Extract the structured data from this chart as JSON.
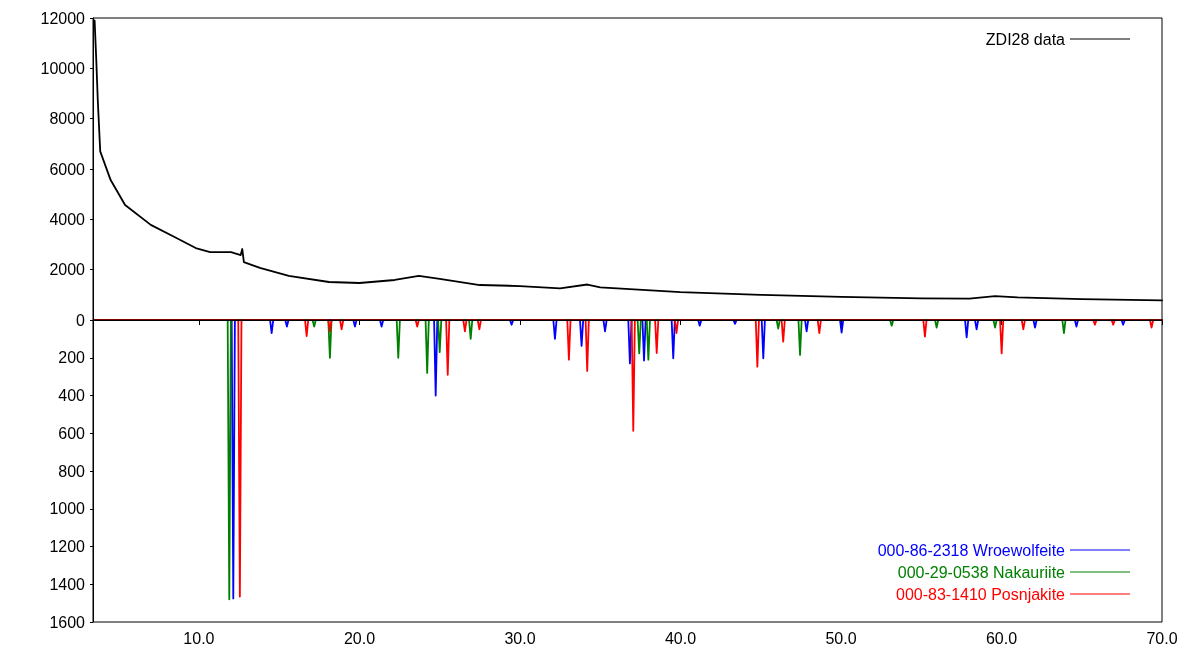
{
  "chart_data": [
    {
      "type": "line",
      "xlim": [
        3.4,
        70
      ],
      "ylim": [
        0,
        12000
      ],
      "yticks": [
        0,
        2000,
        4000,
        6000,
        8000,
        10000,
        12000
      ],
      "tick_labels": "y",
      "grid": false,
      "legend": "top right",
      "marker": "none",
      "line_style": "solid",
      "x": [
        3.5,
        3.6,
        3.7,
        3.85,
        4.5,
        5.4,
        7.0,
        8.6,
        9.8,
        10.7,
        12.0,
        12.6,
        12.7,
        12.8,
        13.8,
        15.6,
        18.1,
        20,
        22.2,
        23.7,
        25,
        27.5,
        30,
        32.5,
        34.2,
        35,
        40,
        45,
        50,
        55,
        58,
        59.6,
        61,
        65,
        70
      ],
      "series": [
        {
          "name": "ZDI28 data",
          "color": "#000000",
          "values": [
            11900,
            10400,
            8700,
            6700,
            5560,
            4570,
            3780,
            3260,
            2860,
            2700,
            2700,
            2580,
            2820,
            2300,
            2070,
            1750,
            1510,
            1470,
            1590,
            1750,
            1630,
            1390,
            1350,
            1260,
            1410,
            1300,
            1110,
            1000,
            920,
            860,
            850,
            950,
            900,
            830,
            780
          ]
        }
      ]
    },
    {
      "type": "line",
      "xlim": [
        3.4,
        70
      ],
      "xticks": [
        {
          "value": 10,
          "label": "10.0"
        },
        {
          "value": 20,
          "label": "20.0"
        },
        {
          "value": 30,
          "label": "30.0"
        },
        {
          "value": 40,
          "label": "40.0"
        },
        {
          "value": 50,
          "label": "50.0"
        },
        {
          "value": 60,
          "label": "60.0"
        },
        {
          "value": 70,
          "label": "70.0"
        }
      ],
      "ylim": [
        1600,
        0
      ],
      "yticks": [
        200,
        400,
        600,
        800,
        1000,
        1200,
        1400,
        1600
      ],
      "grid": false,
      "legend": "bottom right",
      "marker": "none",
      "line_style": "solid",
      "series": [
        {
          "name": "000-86-2318 Wroewolfeite",
          "color": "#0000ff",
          "x": [
            3.5,
            12.04,
            12.14,
            12.24,
            14.43,
            14.53,
            14.63,
            15.38,
            15.48,
            15.58,
            19.62,
            19.72,
            19.82,
            21.28,
            21.38,
            21.48,
            24.65,
            24.75,
            24.85,
            29.38,
            29.48,
            29.58,
            32.08,
            32.18,
            32.28,
            33.74,
            33.84,
            33.94,
            35.2,
            35.3,
            35.4,
            36.75,
            36.85,
            36.95,
            37.63,
            37.73,
            37.83,
            39.45,
            39.55,
            39.65,
            41.1,
            41.2,
            41.3,
            43.3,
            43.4,
            43.5,
            45.06,
            45.16,
            45.26,
            47.76,
            47.86,
            47.96,
            49.94,
            50.04,
            50.14,
            57.73,
            57.83,
            57.93,
            58.35,
            58.45,
            58.55,
            61.99,
            62.09,
            62.19,
            64.57,
            64.67,
            64.77,
            67.48,
            67.58,
            67.68,
            70
          ],
          "values": [
            0,
            0,
            1475,
            0,
            0,
            70,
            0,
            0,
            35,
            0,
            0,
            35,
            0,
            0,
            35,
            0,
            0,
            400,
            0,
            0,
            25,
            0,
            0,
            100,
            0,
            0,
            137,
            0,
            0,
            60,
            0,
            0,
            230,
            0,
            0,
            215,
            0,
            0,
            203,
            0,
            0,
            30,
            0,
            0,
            20,
            0,
            0,
            203,
            0,
            0,
            60,
            0,
            0,
            67,
            0,
            0,
            92,
            0,
            0,
            50,
            0,
            0,
            40,
            0,
            0,
            35,
            0,
            0,
            25,
            0,
            0
          ]
        },
        {
          "name": "000-29-0538 Nakauriite",
          "color": "#008000",
          "x": [
            3.5,
            11.79,
            11.89,
            11.99,
            17.08,
            17.18,
            17.28,
            18.06,
            18.16,
            18.26,
            22.32,
            22.42,
            22.52,
            24.12,
            24.22,
            24.32,
            24.9,
            25.0,
            25.1,
            26.83,
            26.93,
            27.03,
            37.33,
            37.43,
            37.53,
            37.9,
            38.0,
            38.1,
            45.99,
            46.09,
            46.19,
            47.35,
            47.45,
            47.55,
            53.06,
            53.16,
            53.26,
            55.86,
            55.96,
            56.06,
            59.5,
            59.6,
            59.7,
            63.79,
            63.89,
            63.99,
            70
          ],
          "values": [
            0,
            0,
            1480,
            0,
            0,
            35,
            0,
            0,
            200,
            0,
            0,
            200,
            0,
            0,
            280,
            0,
            0,
            170,
            0,
            0,
            100,
            0,
            0,
            177,
            0,
            0,
            210,
            0,
            0,
            45,
            0,
            0,
            185,
            0,
            0,
            30,
            0,
            0,
            40,
            0,
            0,
            40,
            0,
            0,
            70,
            0,
            0
          ]
        },
        {
          "name": "000-83-1410 Posnjakite",
          "color": "#ff0000",
          "x": [
            3.5,
            12.45,
            12.55,
            12.65,
            16.61,
            16.71,
            16.81,
            18.06,
            18.16,
            18.26,
            18.79,
            18.89,
            18.99,
            23.5,
            23.6,
            23.7,
            25.4,
            25.5,
            25.6,
            26.47,
            26.57,
            26.67,
            27.37,
            27.47,
            27.57,
            32.95,
            33.05,
            33.15,
            34.09,
            34.19,
            34.29,
            36.96,
            37.06,
            37.16,
            38.42,
            38.52,
            38.62,
            39.65,
            39.75,
            39.85,
            44.69,
            44.79,
            44.89,
            46.3,
            46.4,
            46.5,
            48.55,
            48.65,
            48.75,
            55.13,
            55.23,
            55.33,
            59.91,
            60.01,
            60.11,
            61.26,
            61.36,
            61.46,
            65.72,
            65.82,
            65.92,
            66.86,
            66.96,
            67.06,
            69.25,
            69.35,
            69.45,
            70
          ],
          "values": [
            0,
            0,
            1465,
            0,
            0,
            85,
            0,
            0,
            60,
            0,
            0,
            50,
            0,
            0,
            35,
            0,
            0,
            290,
            0,
            0,
            60,
            0,
            0,
            50,
            0,
            0,
            210,
            0,
            0,
            270,
            0,
            0,
            587,
            0,
            0,
            175,
            0,
            0,
            70,
            0,
            0,
            247,
            0,
            0,
            115,
            0,
            0,
            70,
            0,
            0,
            88,
            0,
            0,
            177,
            0,
            0,
            50,
            0,
            0,
            25,
            0,
            0,
            25,
            0,
            0,
            40,
            0,
            0
          ]
        }
      ]
    }
  ]
}
